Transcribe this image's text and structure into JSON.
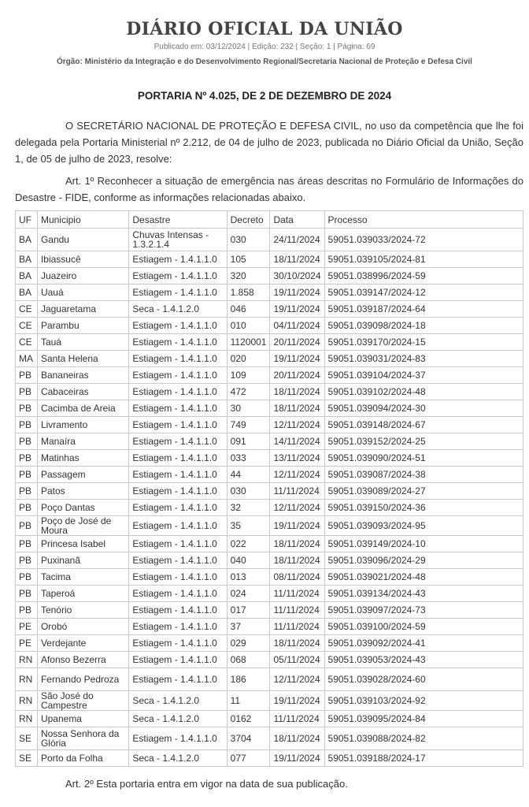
{
  "header": {
    "title": "DIÁRIO OFICIAL DA UNIÃO",
    "publication": "Publicado em: 03/12/2024 | Edição: 232 | Seção: 1 | Página: 69",
    "orgao": "Órgão: Ministério da Integração e do Desenvolvimento Regional/Secretaria Nacional de Proteção e Defesa Civil"
  },
  "portaria_title": "PORTARIA Nº 4.025, DE 2 DE DEZEMBRO DE 2024",
  "preamble": "O SECRETÁRIO NACIONAL DE PROTEÇÃO E DEFESA CIVIL, no uso da competência que lhe foi delegada pela Portaria Ministerial nº 2.212, de 04 de julho de 2023, publicada no Diário Oficial da União, Seção 1, de 05 de julho de 2023, resolve:",
  "art1": "Art. 1º Reconhecer a situação de emergência nas áreas descritas no Formulário de Informações do Desastre - FIDE, conforme as informações relacionadas abaixo.",
  "art2": "Art. 2º Esta portaria entra em vigor na data de sua publicação.",
  "table": {
    "headers": [
      "UF",
      "Municipio",
      "Desastre",
      "Decreto",
      "Data",
      "Processo"
    ],
    "rows": [
      [
        "BA",
        "Gandu",
        "Chuvas Intensas - 1.3.2.1.4",
        "030",
        "24/11/2024",
        "59051.039033/2024-72"
      ],
      [
        "BA",
        "Ibiassucê",
        "Estiagem - 1.4.1.1.0",
        "105",
        "18/11/2024",
        "59051.039105/2024-81"
      ],
      [
        "BA",
        "Juazeiro",
        "Estiagem - 1.4.1.1.0",
        "320",
        "30/10/2024",
        "59051.038996/2024-59"
      ],
      [
        "BA",
        "Uauá",
        "Estiagem - 1.4.1.1.0",
        "1.858",
        "19/11/2024",
        "59051.039147/2024-12"
      ],
      [
        "CE",
        "Jaguaretama",
        "Seca - 1.4.1.2.0",
        "046",
        "19/11/2024",
        "59051.039187/2024-64"
      ],
      [
        "CE",
        "Parambu",
        "Estiagem - 1.4.1.1.0",
        "010",
        "04/11/2024",
        "59051.039098/2024-18"
      ],
      [
        "CE",
        "Tauá",
        "Estiagem - 1.4.1.1.0",
        "1120001",
        "20/11/2024",
        "59051.039170/2024-15"
      ],
      [
        "MA",
        "Santa Helena",
        "Estiagem - 1.4.1.1.0",
        "020",
        "19/11/2024",
        "59051.039031/2024-83"
      ],
      [
        "PB",
        "Bananeiras",
        "Estiagem - 1.4.1.1.0",
        "109",
        "20/11/2024",
        "59051.039104/2024-37"
      ],
      [
        "PB",
        "Cabaceiras",
        "Estiagem - 1.4.1.1.0",
        "472",
        "18/11/2024",
        "59051.039102/2024-48"
      ],
      [
        "PB",
        "Cacimba de Areia",
        "Estiagem - 1.4.1.1.0",
        "30",
        "18/11/2024",
        "59051.039094/2024-30"
      ],
      [
        "PB",
        "Livramento",
        "Estiagem - 1.4.1.1.0",
        "749",
        "12/11/2024",
        "59051.039148/2024-67"
      ],
      [
        "PB",
        "Manaíra",
        "Estiagem - 1.4.1.1.0",
        "091",
        "14/11/2024",
        "59051.039152/2024-25"
      ],
      [
        "PB",
        "Matinhas",
        "Estiagem - 1.4.1.1.0",
        "033",
        "13/11/2024",
        "59051.039090/2024-51"
      ],
      [
        "PB",
        "Passagem",
        "Estiagem - 1.4.1.1.0",
        "44",
        "12/11/2024",
        "59051.039087/2024-38"
      ],
      [
        "PB",
        "Patos",
        "Estiagem - 1.4.1.1.0",
        "030",
        "11/11/2024",
        "59051.039089/2024-27"
      ],
      [
        "PB",
        "Poço Dantas",
        "Estiagem - 1.4.1.1.0",
        "32",
        "12/11/2024",
        "59051.039150/2024-36"
      ],
      [
        "PB",
        "Poço de José de Moura",
        "Estiagem - 1.4.1.1.0",
        "35",
        "19/11/2024",
        "59051.039093/2024-95"
      ],
      [
        "PB",
        "Princesa Isabel",
        "Estiagem - 1.4.1.1.0",
        "022",
        "18/11/2024",
        "59051.039149/2024-10"
      ],
      [
        "PB",
        "Puxinanã",
        "Estiagem - 1.4.1.1.0",
        "040",
        "18/11/2024",
        "59051.039096/2024-29"
      ],
      [
        "PB",
        "Tacima",
        "Estiagem - 1.4.1.1.0",
        "013",
        "08/11/2024",
        "59051.039021/2024-48"
      ],
      [
        "PB",
        "Taperoá",
        "Estiagem - 1.4.1.1.0",
        "024",
        "11/11/2024",
        "59051.039134/2024-43"
      ],
      [
        "PB",
        "Tenório",
        "Estiagem - 1.4.1.1.0",
        "017",
        "11/11/2024",
        "59051.039097/2024-73"
      ],
      [
        "PE",
        "Orobó",
        "Estiagem - 1.4.1.1.0",
        "37",
        "11/11/2024",
        "59051.039100/2024-59"
      ],
      [
        "PE",
        "Verdejante",
        "Estiagem - 1.4.1.1.0",
        "029",
        "18/11/2024",
        "59051.039092/2024-41"
      ],
      [
        "RN",
        "Afonso Bezerra",
        "Estiagem - 1.4.1.1.0",
        "068",
        "05/11/2024",
        "59051.039053/2024-43"
      ],
      [
        "RN",
        "Fernando Pedroza",
        "Estiagem - 1.4.1.1.0",
        "186",
        "12/11/2024",
        "59051.039028/2024-60"
      ],
      [
        "RN",
        "São José do Campestre",
        "Seca - 1.4.1.2.0",
        "11",
        "19/11/2024",
        "59051.039103/2024-92"
      ],
      [
        "RN",
        "Upanema",
        "Seca - 1.4.1.2.0",
        "0162",
        "11/11/2024",
        "59051.039095/2024-84"
      ],
      [
        "SE",
        "Nossa Senhora da Glória",
        "Estiagem - 1.4.1.1.0",
        "3704",
        "18/11/2024",
        "59051.039088/2024-82"
      ],
      [
        "SE",
        "Porto da Folha",
        "Seca - 1.4.1.2.0",
        "077",
        "19/11/2024",
        "59051.039188/2024-17"
      ]
    ]
  }
}
